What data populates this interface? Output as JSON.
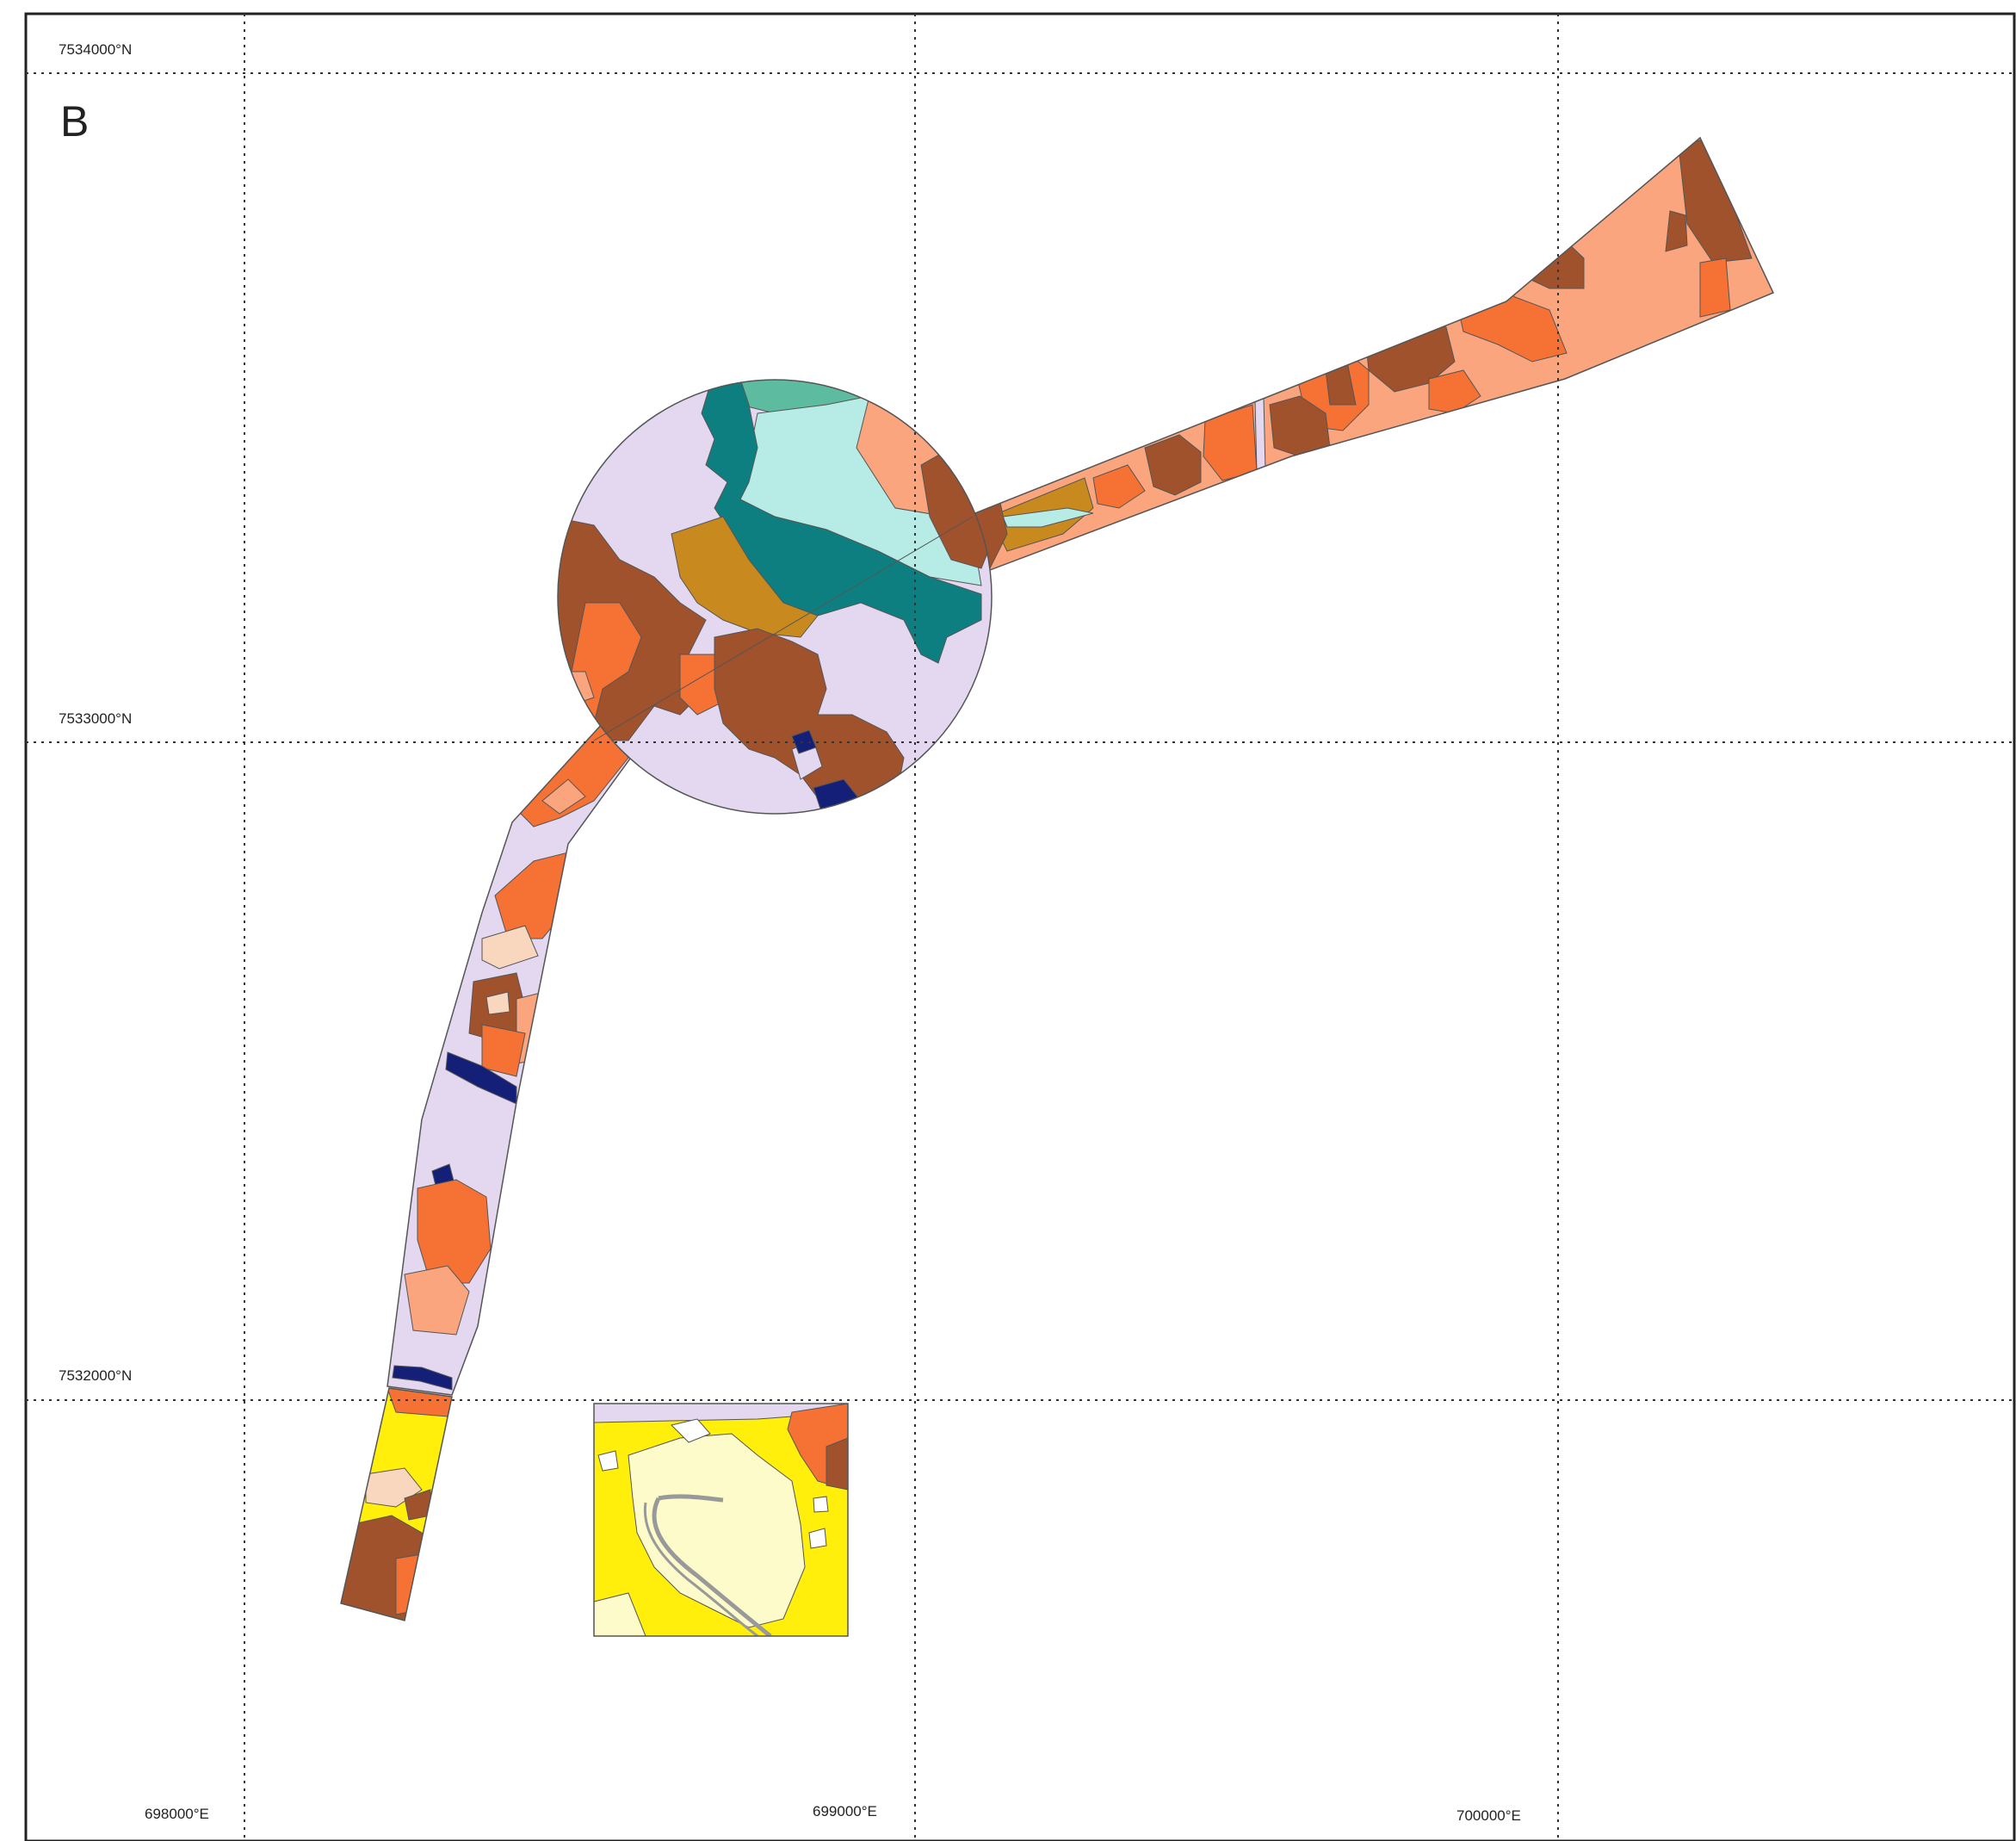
{
  "panel_label": "B",
  "northing_labels": [
    "7534000°N",
    "7533000°N",
    "7532000°N"
  ],
  "easting_labels": [
    "698000°E",
    "699000°E",
    "700000°E"
  ],
  "colors": {
    "frame": "#222222",
    "grid": "#333333",
    "outline": "#555555",
    "lilac": "#E4D8F0",
    "dark_brown": "#A0522D",
    "orange": "#F57234",
    "peach": "#FAA57D",
    "light_peach": "#F8D7BE",
    "ochre": "#C88A1E",
    "teal": "#0E7F80",
    "light_cyan": "#B6ECE5",
    "sea_green": "#5DBB9F",
    "navy": "#141F78",
    "yellow": "#FFEF0A",
    "cream": "#FEFBCB",
    "gray_line": "#999999"
  }
}
